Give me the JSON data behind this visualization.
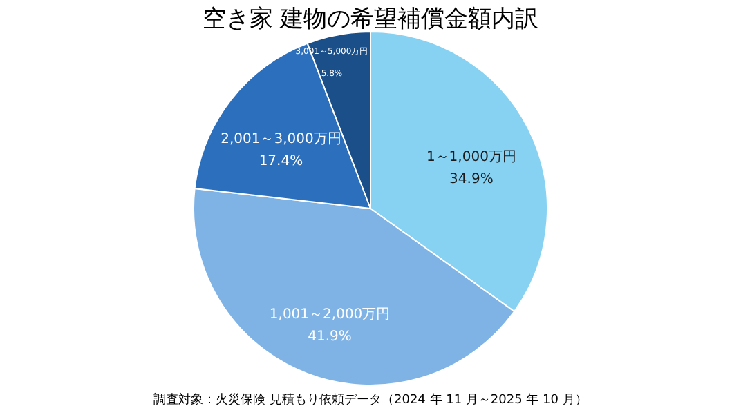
{
  "chart_data": {
    "type": "pie",
    "title": "空き家 建物の希望補償金額内訳",
    "categories": [
      "1～1,000万円",
      "1,001～2,000万円",
      "2,001～3,000万円",
      "3,001～5,000万円"
    ],
    "values": [
      34.9,
      41.9,
      17.4,
      5.8
    ],
    "value_labels": [
      "34.9%",
      "41.9%",
      "17.4%",
      "5.8%"
    ],
    "colors": [
      "#87d1f3",
      "#7fb3e6",
      "#2c6fbd",
      "#1b4f89"
    ],
    "annotations": [
      "調査対象：火災保険 見積もり依頼データ（2024 年 11 月～2025 年 10 月）"
    ]
  }
}
